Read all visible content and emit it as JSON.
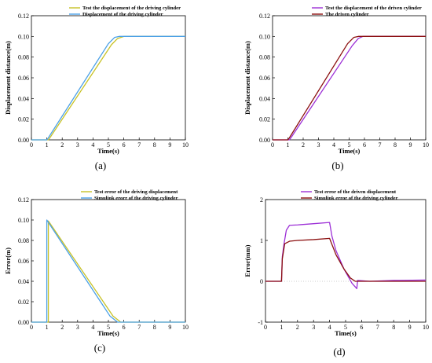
{
  "colors": {
    "yellow": "#c8c226",
    "cyan": "#4aa0e6",
    "purple": "#9c2fd6",
    "darkred": "#8b0f0f",
    "axis": "#000000"
  },
  "chart_data": [
    {
      "type": "line",
      "caption": "(a)",
      "xlabel": "Time(s)",
      "ylabel": "Displacement distance(m)",
      "xlim": [
        0,
        10
      ],
      "ylim": [
        0,
        0.12
      ],
      "xticks": [
        0,
        1,
        2,
        3,
        4,
        5,
        6,
        7,
        8,
        9,
        10
      ],
      "yticks": [
        0.0,
        0.02,
        0.04,
        0.06,
        0.08,
        0.1,
        0.12
      ],
      "ytick_labels": [
        "0.00",
        "0.02",
        "0.04",
        "0.06",
        "0.08",
        "0.10",
        "0.12"
      ],
      "legend_position": "top",
      "series": [
        {
          "name": "Test the displacement of the driving cylinder",
          "color": "#c8c226",
          "x": [
            0,
            1.1,
            1.2,
            5.2,
            5.6,
            6.0,
            10
          ],
          "y": [
            0,
            0,
            0.002,
            0.092,
            0.098,
            0.1,
            0.1
          ]
        },
        {
          "name": "Displacement of the driving cylinder",
          "color": "#4aa0e6",
          "x": [
            0,
            1.0,
            1.1,
            5.0,
            5.4,
            5.7,
            10
          ],
          "y": [
            0,
            0,
            0.002,
            0.093,
            0.099,
            0.1,
            0.1
          ]
        }
      ]
    },
    {
      "type": "line",
      "caption": "(b)",
      "xlabel": "Time(s)",
      "ylabel": "Displacement distance(m)",
      "xlim": [
        0,
        10
      ],
      "ylim": [
        0,
        0.12
      ],
      "xticks": [
        0,
        1,
        2,
        3,
        4,
        5,
        6,
        7,
        8,
        9,
        10
      ],
      "yticks": [
        0.0,
        0.02,
        0.04,
        0.06,
        0.08,
        0.1,
        0.12
      ],
      "ytick_labels": [
        "0.00",
        "0.02",
        "0.04",
        "0.06",
        "0.08",
        "0.10",
        "0.12"
      ],
      "legend_position": "top",
      "series": [
        {
          "name": "Test the displacement of the driven cylinder",
          "color": "#9c2fd6",
          "x": [
            0,
            1.1,
            1.2,
            5.2,
            5.6,
            5.9,
            10
          ],
          "y": [
            0,
            0,
            0.002,
            0.091,
            0.098,
            0.1,
            0.1
          ]
        },
        {
          "name": "The driven cylinder",
          "color": "#8b0f0f",
          "x": [
            0,
            1.0,
            1.1,
            4.9,
            5.3,
            5.6,
            10
          ],
          "y": [
            0,
            0,
            0.002,
            0.093,
            0.099,
            0.1,
            0.1
          ]
        }
      ]
    },
    {
      "type": "line",
      "caption": "(c)",
      "xlabel": "Time(s)",
      "ylabel": "Error(m)",
      "xlim": [
        0,
        10
      ],
      "ylim": [
        0,
        0.12
      ],
      "xticks": [
        0,
        1,
        2,
        3,
        4,
        5,
        6,
        7,
        8,
        9,
        10
      ],
      "yticks": [
        0.0,
        0.02,
        0.04,
        0.06,
        0.08,
        0.1,
        0.12
      ],
      "ytick_labels": [
        "0.00",
        "0.02",
        "0.04",
        "0.06",
        "0.08",
        "0.10",
        "0.12"
      ],
      "legend_position": "top",
      "series": [
        {
          "name": "Test error of the driving displacement",
          "color": "#c8c226",
          "x": [
            0,
            1.05,
            1.1,
            1.1,
            5.3,
            5.8,
            10
          ],
          "y": [
            0,
            0,
            0,
            0.099,
            0.006,
            0,
            0
          ]
        },
        {
          "name": "Simulink erorr of the driving cylinder",
          "color": "#4aa0e6",
          "x": [
            0,
            0.98,
            1.0,
            1.0,
            5.1,
            5.6,
            10
          ],
          "y": [
            0,
            0,
            0,
            0.1,
            0.006,
            0,
            0
          ]
        }
      ]
    },
    {
      "type": "line",
      "caption": "(d)",
      "xlabel": "Time(s)",
      "ylabel": "Error(mm)",
      "xlim": [
        0,
        10
      ],
      "ylim": [
        -1,
        2
      ],
      "xticks": [
        0,
        1,
        2,
        3,
        4,
        5,
        6,
        7,
        8,
        9,
        10
      ],
      "yticks": [
        -1,
        0,
        1,
        2
      ],
      "ytick_labels": [
        "-1",
        "0",
        "1",
        "2"
      ],
      "legend_position": "top",
      "series": [
        {
          "name": "Test error of the driven displacement",
          "color": "#9c2fd6",
          "x": [
            0,
            1.0,
            1.05,
            1.15,
            1.3,
            1.5,
            2.0,
            3.0,
            4.0,
            4.15,
            4.4,
            4.9,
            5.4,
            5.7,
            5.75,
            6.5,
            8,
            10
          ],
          "y": [
            0,
            0,
            0.6,
            0.9,
            1.25,
            1.37,
            1.38,
            1.41,
            1.44,
            1.1,
            0.75,
            0.3,
            -0.05,
            -0.18,
            0.02,
            0.0,
            0.02,
            0.03
          ]
        },
        {
          "name": "Simulink error of the driving cylinder",
          "color": "#8b0f0f",
          "x": [
            0,
            1.0,
            1.05,
            1.2,
            1.5,
            2.0,
            3.0,
            4.0,
            4.1,
            4.4,
            4.9,
            5.3,
            5.6,
            6.0,
            10
          ],
          "y": [
            0,
            0,
            0.55,
            0.92,
            0.98,
            1.0,
            1.02,
            1.05,
            0.95,
            0.65,
            0.3,
            0.08,
            0.0,
            0.0,
            0.0
          ]
        }
      ]
    }
  ]
}
